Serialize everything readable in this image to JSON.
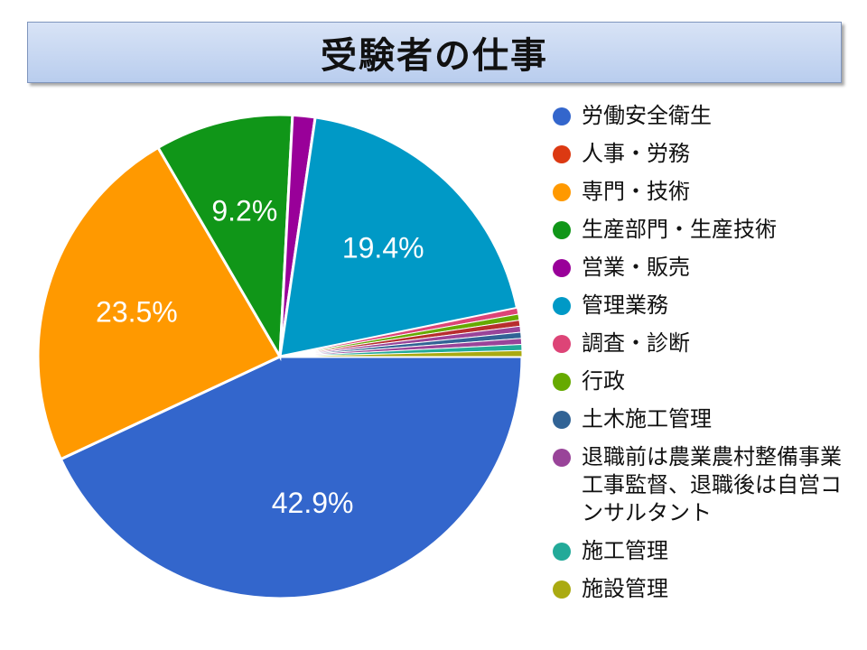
{
  "title": "受験者の仕事",
  "chart_data": {
    "type": "pie",
    "title": "受験者の仕事",
    "legend_position": "right",
    "start_angle_deg": 0,
    "direction": "clockwise",
    "slices": [
      {
        "name": "労働安全衛生",
        "value": 42.9,
        "label": "42.9%",
        "color": "#3366cc"
      },
      {
        "name": "人事・労務",
        "value": 0.0,
        "label": "",
        "color": "#dc3912"
      },
      {
        "name": "専門・技術",
        "value": 23.5,
        "label": "23.5%",
        "color": "#ff9900"
      },
      {
        "name": "生産部門・生産技術",
        "value": 9.2,
        "label": "9.2%",
        "color": "#109618"
      },
      {
        "name": "営業・販売",
        "value": 1.5,
        "label": "",
        "color": "#990099"
      },
      {
        "name": "管理業務",
        "value": 19.4,
        "label": "19.4%",
        "color": "#0099c6"
      },
      {
        "name": "調査・診断",
        "value": 0.4,
        "label": "",
        "color": "#dd4477"
      },
      {
        "name": "行政",
        "value": 0.4,
        "label": "",
        "color": "#66aa00"
      },
      {
        "name": "",
        "value": 0.4,
        "label": "",
        "color": "#b82e2e"
      },
      {
        "name": "",
        "value": 0.4,
        "label": "",
        "color": "#994499"
      },
      {
        "name": "土木施工管理",
        "value": 0.4,
        "label": "",
        "color": "#316395"
      },
      {
        "name": "",
        "value": 0.4,
        "label": "",
        "color": "#994499"
      },
      {
        "name": "施工管理",
        "value": 0.4,
        "label": "",
        "color": "#22aa99"
      },
      {
        "name": "施設管理",
        "value": 0.4,
        "label": "",
        "color": "#aaaa11"
      }
    ]
  },
  "legend": [
    {
      "label": "労働安全衛生",
      "color": "#3366cc"
    },
    {
      "label": "人事・労務",
      "color": "#dc3912"
    },
    {
      "label": "専門・技術",
      "color": "#ff9900"
    },
    {
      "label": "生産部門・生産技術",
      "color": "#109618"
    },
    {
      "label": "営業・販売",
      "color": "#990099"
    },
    {
      "label": "管理業務",
      "color": "#0099c6"
    },
    {
      "label": "調査・診断",
      "color": "#dd4477"
    },
    {
      "label": "行政",
      "color": "#66aa00"
    },
    {
      "label": "土木施工管理",
      "color": "#316395"
    },
    {
      "label": "退職前は農業農村整備事業工事監督、退職後は自営コンサルタント",
      "color": "#994499"
    },
    {
      "label": "施工管理",
      "color": "#22aa99"
    },
    {
      "label": "施設管理",
      "color": "#aaaa11"
    }
  ]
}
